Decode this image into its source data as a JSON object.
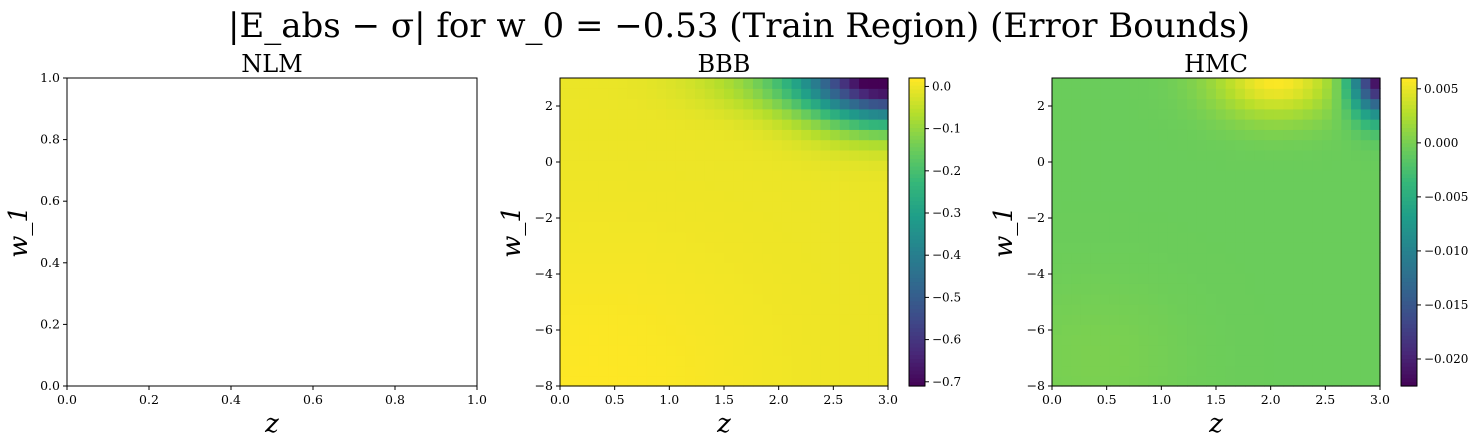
{
  "figure": {
    "suptitle": "|E_abs − σ| for w_0 = −0.53 (Train Region) (Error Bounds)"
  },
  "chart_data": [
    {
      "type": "heatmap",
      "title": "NLM",
      "xlabel": "z",
      "ylabel": "w_1",
      "xlim": [
        0.0,
        1.0
      ],
      "ylim": [
        0.0,
        1.0
      ],
      "xticks": [
        "0.0",
        "0.2",
        "0.4",
        "0.6",
        "0.8",
        "1.0"
      ],
      "yticks": [
        "0.0",
        "0.2",
        "0.4",
        "0.6",
        "0.8",
        "1.0"
      ],
      "empty": true
    },
    {
      "type": "heatmap",
      "title": "BBB",
      "xlabel": "z",
      "ylabel": "w_1",
      "xlim": [
        0.0,
        3.0
      ],
      "ylim": [
        -8,
        3
      ],
      "xticks": [
        "0.0",
        "0.5",
        "1.0",
        "1.5",
        "2.0",
        "2.5",
        "3.0"
      ],
      "yticks": [
        "−8",
        "−6",
        "−4",
        "−2",
        "0",
        "2"
      ],
      "colormap": "viridis",
      "color_range": [
        -0.71,
        0.02
      ],
      "colorbar_ticks": [
        "0.0",
        "−0.1",
        "−0.2",
        "−0.3",
        "−0.4",
        "−0.5",
        "−0.6",
        "−0.7"
      ],
      "field": {
        "base": 0.0,
        "bumps": [
          {
            "z": 3.0,
            "w1": 3.0,
            "amp": -0.71,
            "sz": 0.5,
            "sw": 1.1
          },
          {
            "z": 2.2,
            "w1": 3.0,
            "amp": -0.12,
            "sz": 0.6,
            "sw": 0.8
          }
        ],
        "slopes": [
          {
            "amp": 0.02,
            "z0": 0.3,
            "w0": -8,
            "sz": 1.2,
            "sw": 4
          }
        ]
      }
    },
    {
      "type": "heatmap",
      "title": "HMC",
      "xlabel": "z",
      "ylabel": "w_1",
      "xlim": [
        0.0,
        3.0
      ],
      "ylim": [
        -8,
        3
      ],
      "xticks": [
        "0.0",
        "0.5",
        "1.0",
        "1.5",
        "2.0",
        "2.5",
        "3.0"
      ],
      "yticks": [
        "−8",
        "−6",
        "−4",
        "−2",
        "0",
        "2"
      ],
      "colormap": "viridis",
      "color_range": [
        -0.0225,
        0.006
      ],
      "colorbar_ticks": [
        "0.005",
        "0.000",
        "−0.005",
        "−0.010",
        "−0.015",
        "−0.020"
      ],
      "field": {
        "base": -0.0005,
        "bumps": [
          {
            "z": 2.05,
            "w1": 3.0,
            "amp": 0.0065,
            "sz": 0.4,
            "sw": 1.0
          },
          {
            "z": 3.0,
            "w1": 3.0,
            "amp": -0.022,
            "sz": 0.18,
            "sw": 0.9
          },
          {
            "z": 0.4,
            "w1": -7.0,
            "amp": 0.0008,
            "sz": 0.6,
            "sw": 2.0
          }
        ],
        "slopes": []
      }
    }
  ]
}
